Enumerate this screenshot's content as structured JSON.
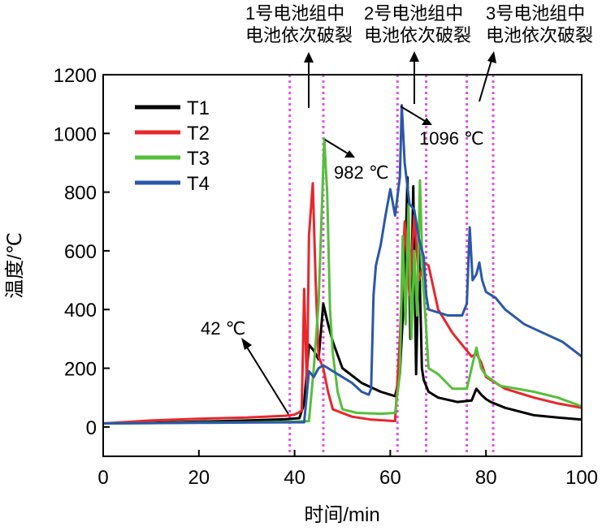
{
  "chart_data": {
    "type": "line",
    "xlabel": "时间/min",
    "ylabel": "温度/℃",
    "xlim": [
      0,
      100
    ],
    "ylim": [
      -100,
      1200
    ],
    "xticks": [
      0,
      20,
      40,
      60,
      80,
      100
    ],
    "yticks": [
      0,
      200,
      400,
      600,
      800,
      1000,
      1200
    ],
    "legend_position": "top-left",
    "series": [
      {
        "name": "T1",
        "color": "#000000",
        "points": [
          [
            0,
            12
          ],
          [
            10,
            14
          ],
          [
            20,
            18
          ],
          [
            30,
            22
          ],
          [
            38,
            26
          ],
          [
            41,
            30
          ],
          [
            42,
            80
          ],
          [
            43,
            280
          ],
          [
            44,
            260
          ],
          [
            45,
            230
          ],
          [
            46,
            420
          ],
          [
            47,
            350
          ],
          [
            48,
            290
          ],
          [
            50,
            200
          ],
          [
            54,
            150
          ],
          [
            58,
            120
          ],
          [
            61,
            105
          ],
          [
            62,
            180
          ],
          [
            63,
            500
          ],
          [
            63.6,
            850
          ],
          [
            64.2,
            300
          ],
          [
            64.8,
            820
          ],
          [
            65.4,
            180
          ],
          [
            66,
            620
          ],
          [
            66.6,
            200
          ],
          [
            67,
            160
          ],
          [
            68,
            120
          ],
          [
            70,
            100
          ],
          [
            74,
            85
          ],
          [
            77,
            90
          ],
          [
            78,
            130
          ],
          [
            79,
            110
          ],
          [
            80,
            95
          ],
          [
            81,
            85
          ],
          [
            84,
            65
          ],
          [
            90,
            40
          ],
          [
            95,
            32
          ],
          [
            100,
            25
          ]
        ]
      },
      {
        "name": "T2",
        "color": "#e8262b",
        "points": [
          [
            0,
            12
          ],
          [
            10,
            22
          ],
          [
            20,
            28
          ],
          [
            30,
            32
          ],
          [
            38,
            38
          ],
          [
            40,
            42
          ],
          [
            41.5,
            55
          ],
          [
            42,
            470
          ],
          [
            42.6,
            120
          ],
          [
            43,
            650
          ],
          [
            43.8,
            830
          ],
          [
            44.4,
            500
          ],
          [
            45,
            240
          ],
          [
            46,
            200
          ],
          [
            47,
            120
          ],
          [
            48,
            60
          ],
          [
            52,
            35
          ],
          [
            56,
            25
          ],
          [
            61,
            20
          ],
          [
            62,
            300
          ],
          [
            63,
            700
          ],
          [
            64,
            450
          ],
          [
            65,
            720
          ],
          [
            66,
            500
          ],
          [
            67,
            560
          ],
          [
            68,
            550
          ],
          [
            70,
            400
          ],
          [
            73,
            320
          ],
          [
            77,
            240
          ],
          [
            78,
            250
          ],
          [
            79,
            220
          ],
          [
            80,
            170
          ],
          [
            84,
            130
          ],
          [
            90,
            100
          ],
          [
            95,
            80
          ],
          [
            100,
            65
          ]
        ]
      },
      {
        "name": "T3",
        "color": "#55bf3b",
        "points": [
          [
            0,
            12
          ],
          [
            10,
            13
          ],
          [
            20,
            15
          ],
          [
            30,
            16
          ],
          [
            40,
            18
          ],
          [
            43,
            20
          ],
          [
            44,
            200
          ],
          [
            45,
            420
          ],
          [
            45.6,
            700
          ],
          [
            46.2,
            982
          ],
          [
            46.8,
            800
          ],
          [
            47.4,
            400
          ],
          [
            48,
            250
          ],
          [
            49,
            120
          ],
          [
            50,
            60
          ],
          [
            53,
            48
          ],
          [
            58,
            45
          ],
          [
            61,
            48
          ],
          [
            62,
            180
          ],
          [
            62.6,
            650
          ],
          [
            63.2,
            350
          ],
          [
            63.8,
            760
          ],
          [
            64.4,
            300
          ],
          [
            65,
            600
          ],
          [
            65.6,
            380
          ],
          [
            66.2,
            840
          ],
          [
            66.8,
            500
          ],
          [
            67.4,
            360
          ],
          [
            68,
            200
          ],
          [
            70,
            180
          ],
          [
            73,
            130
          ],
          [
            76,
            130
          ],
          [
            78,
            270
          ],
          [
            79,
            200
          ],
          [
            80,
            175
          ],
          [
            83,
            140
          ],
          [
            90,
            120
          ],
          [
            95,
            100
          ],
          [
            100,
            70
          ]
        ]
      },
      {
        "name": "T4",
        "color": "#2a58a8",
        "points": [
          [
            0,
            12
          ],
          [
            10,
            13
          ],
          [
            20,
            14
          ],
          [
            30,
            15
          ],
          [
            40,
            16
          ],
          [
            42,
            16
          ],
          [
            43,
            190
          ],
          [
            44,
            170
          ],
          [
            45,
            200
          ],
          [
            46,
            210
          ],
          [
            47,
            200
          ],
          [
            49,
            180
          ],
          [
            52,
            150
          ],
          [
            54,
            120
          ],
          [
            55.5,
            110
          ],
          [
            56,
            130
          ],
          [
            56.5,
            450
          ],
          [
            57,
            550
          ],
          [
            58,
            620
          ],
          [
            59,
            720
          ],
          [
            60,
            810
          ],
          [
            61,
            720
          ],
          [
            62,
            850
          ],
          [
            62.4,
            1096
          ],
          [
            63,
            900
          ],
          [
            64,
            760
          ],
          [
            65,
            740
          ],
          [
            66,
            640
          ],
          [
            67,
            580
          ],
          [
            67.5,
            450
          ],
          [
            68,
            400
          ],
          [
            70,
            390
          ],
          [
            72,
            380
          ],
          [
            75,
            380
          ],
          [
            76,
            420
          ],
          [
            76.6,
            680
          ],
          [
            77.2,
            500
          ],
          [
            78,
            520
          ],
          [
            78.6,
            560
          ],
          [
            79.2,
            500
          ],
          [
            80,
            460
          ],
          [
            81,
            450
          ],
          [
            82,
            440
          ],
          [
            84,
            400
          ],
          [
            88,
            350
          ],
          [
            92,
            320
          ],
          [
            96,
            290
          ],
          [
            100,
            240
          ]
        ]
      }
    ],
    "vertical_lines": [
      39,
      46,
      61.5,
      67.5,
      76,
      81.5
    ],
    "vline_color": "#dd55dd",
    "annotations": [
      {
        "text": "42 ℃"
      },
      {
        "text": "982 ℃"
      },
      {
        "text": "1096 ℃"
      },
      {
        "text": "1号电池组中"
      },
      {
        "text": "电池依次破裂"
      },
      {
        "text": "2号电池组中"
      },
      {
        "text": "电池依次破裂"
      },
      {
        "text": "3号电池组中"
      },
      {
        "text": "电池依次破裂"
      }
    ]
  }
}
